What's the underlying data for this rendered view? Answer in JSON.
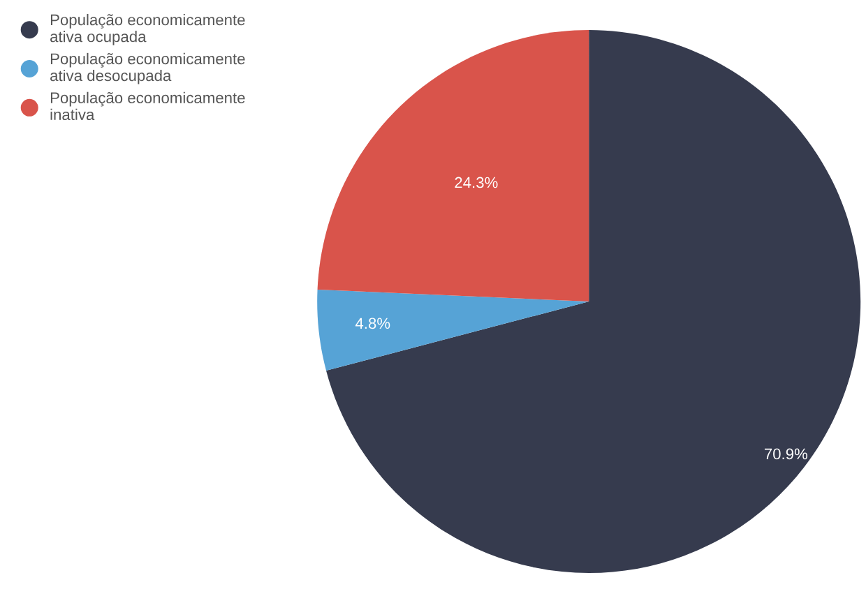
{
  "chart_data": {
    "type": "pie",
    "categories": [
      "População economicamente ativa ocupada",
      "População economicamente ativa desocupada",
      "População economicamente inativa"
    ],
    "values": [
      70.9,
      4.8,
      24.3
    ],
    "colors": [
      "#363b4e",
      "#56a3d6",
      "#d9544b"
    ],
    "value_labels": [
      "70.9%",
      "4.8%",
      "24.3%"
    ],
    "legend": "top left"
  }
}
